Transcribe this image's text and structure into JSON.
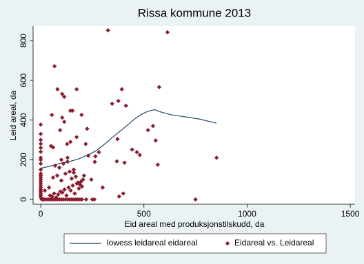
{
  "chart_data": {
    "type": "scatter",
    "title": "Rissa kommune 2013",
    "x_label": "Eid areal med produksjonstilskudd, da",
    "y_label": "Leid areal, da",
    "xlim": [
      -37,
      1523
    ],
    "ylim": [
      -24,
      873
    ],
    "xticks": [
      0,
      500,
      1000,
      1500
    ],
    "yticks": [
      0,
      200,
      400,
      600,
      800
    ],
    "grid": false,
    "legend": "bottom",
    "series": [
      {
        "name": "lowess leidareal eidareal",
        "type": "line",
        "color": "#1a476f",
        "x": [
          0,
          47,
          97,
          131,
          181,
          235,
          268,
          302,
          349,
          399,
          450,
          483,
          517,
          550,
          584,
          634,
          701,
          768,
          852
        ],
        "values": [
          157,
          168,
          182,
          189,
          203,
          227,
          245,
          272,
          314,
          356,
          401,
          426,
          443,
          452,
          440,
          426,
          416,
          405,
          384
        ]
      },
      {
        "name": "Eidareal vs. Leidareal",
        "type": "scatter",
        "color": "#8b1c2e",
        "x": [
          5,
          10,
          15,
          20,
          30,
          40,
          50,
          60,
          70,
          80,
          90,
          100,
          110,
          120,
          130,
          140,
          150,
          160,
          170,
          180,
          190,
          200,
          220,
          250,
          45,
          55,
          65,
          75,
          85,
          95,
          105,
          115,
          125,
          135,
          145,
          155,
          165,
          175,
          185,
          195,
          205,
          60,
          80,
          100,
          120,
          140,
          160,
          180,
          200,
          70,
          90,
          110,
          130,
          150,
          170,
          190,
          210,
          100,
          130,
          160,
          230,
          245,
          40,
          20,
          0,
          0,
          0,
          0,
          0,
          0,
          0,
          0,
          0,
          0,
          0,
          0,
          0,
          0,
          0,
          0,
          0,
          0,
          0,
          0,
          0,
          0,
          0,
          326,
          614,
          67,
          81,
          174,
          574,
          393,
          104,
          114,
          376,
          413,
          346,
          144,
          154,
          54,
          198,
          104,
          114,
          544,
          520,
          94,
          50,
          225,
          174,
          218,
          557,
          372,
          144,
          60,
          128,
          443,
          480,
          466,
          852,
          567,
          282,
          265,
          369,
          406,
          262,
          750,
          260,
          400,
          380,
          300
        ],
        "values": [
          0,
          0,
          0,
          0,
          0,
          0,
          0,
          0,
          0,
          0,
          0,
          0,
          0,
          0,
          0,
          0,
          0,
          0,
          0,
          0,
          0,
          0,
          0,
          0,
          20,
          15,
          30,
          10,
          25,
          40,
          35,
          50,
          20,
          60,
          45,
          70,
          30,
          80,
          55,
          90,
          100,
          110,
          120,
          95,
          130,
          140,
          150,
          85,
          65,
          170,
          160,
          180,
          190,
          105,
          115,
          75,
          120,
          200,
          210,
          135,
          220,
          100,
          60,
          45,
          377,
          330,
          300,
          280,
          260,
          240,
          210,
          200,
          180,
          150,
          130,
          120,
          110,
          100,
          90,
          80,
          70,
          60,
          50,
          40,
          30,
          20,
          10,
          852,
          842,
          671,
          555,
          555,
          566,
          555,
          531,
          517,
          496,
          472,
          482,
          447,
          447,
          426,
          426,
          412,
          391,
          370,
          349,
          349,
          269,
          356,
          314,
          279,
          297,
          304,
          290,
          262,
          279,
          251,
          224,
          238,
          210,
          175,
          238,
          217,
          192,
          185,
          189,
          0,
          0,
          30,
          15,
          60
        ]
      }
    ]
  }
}
